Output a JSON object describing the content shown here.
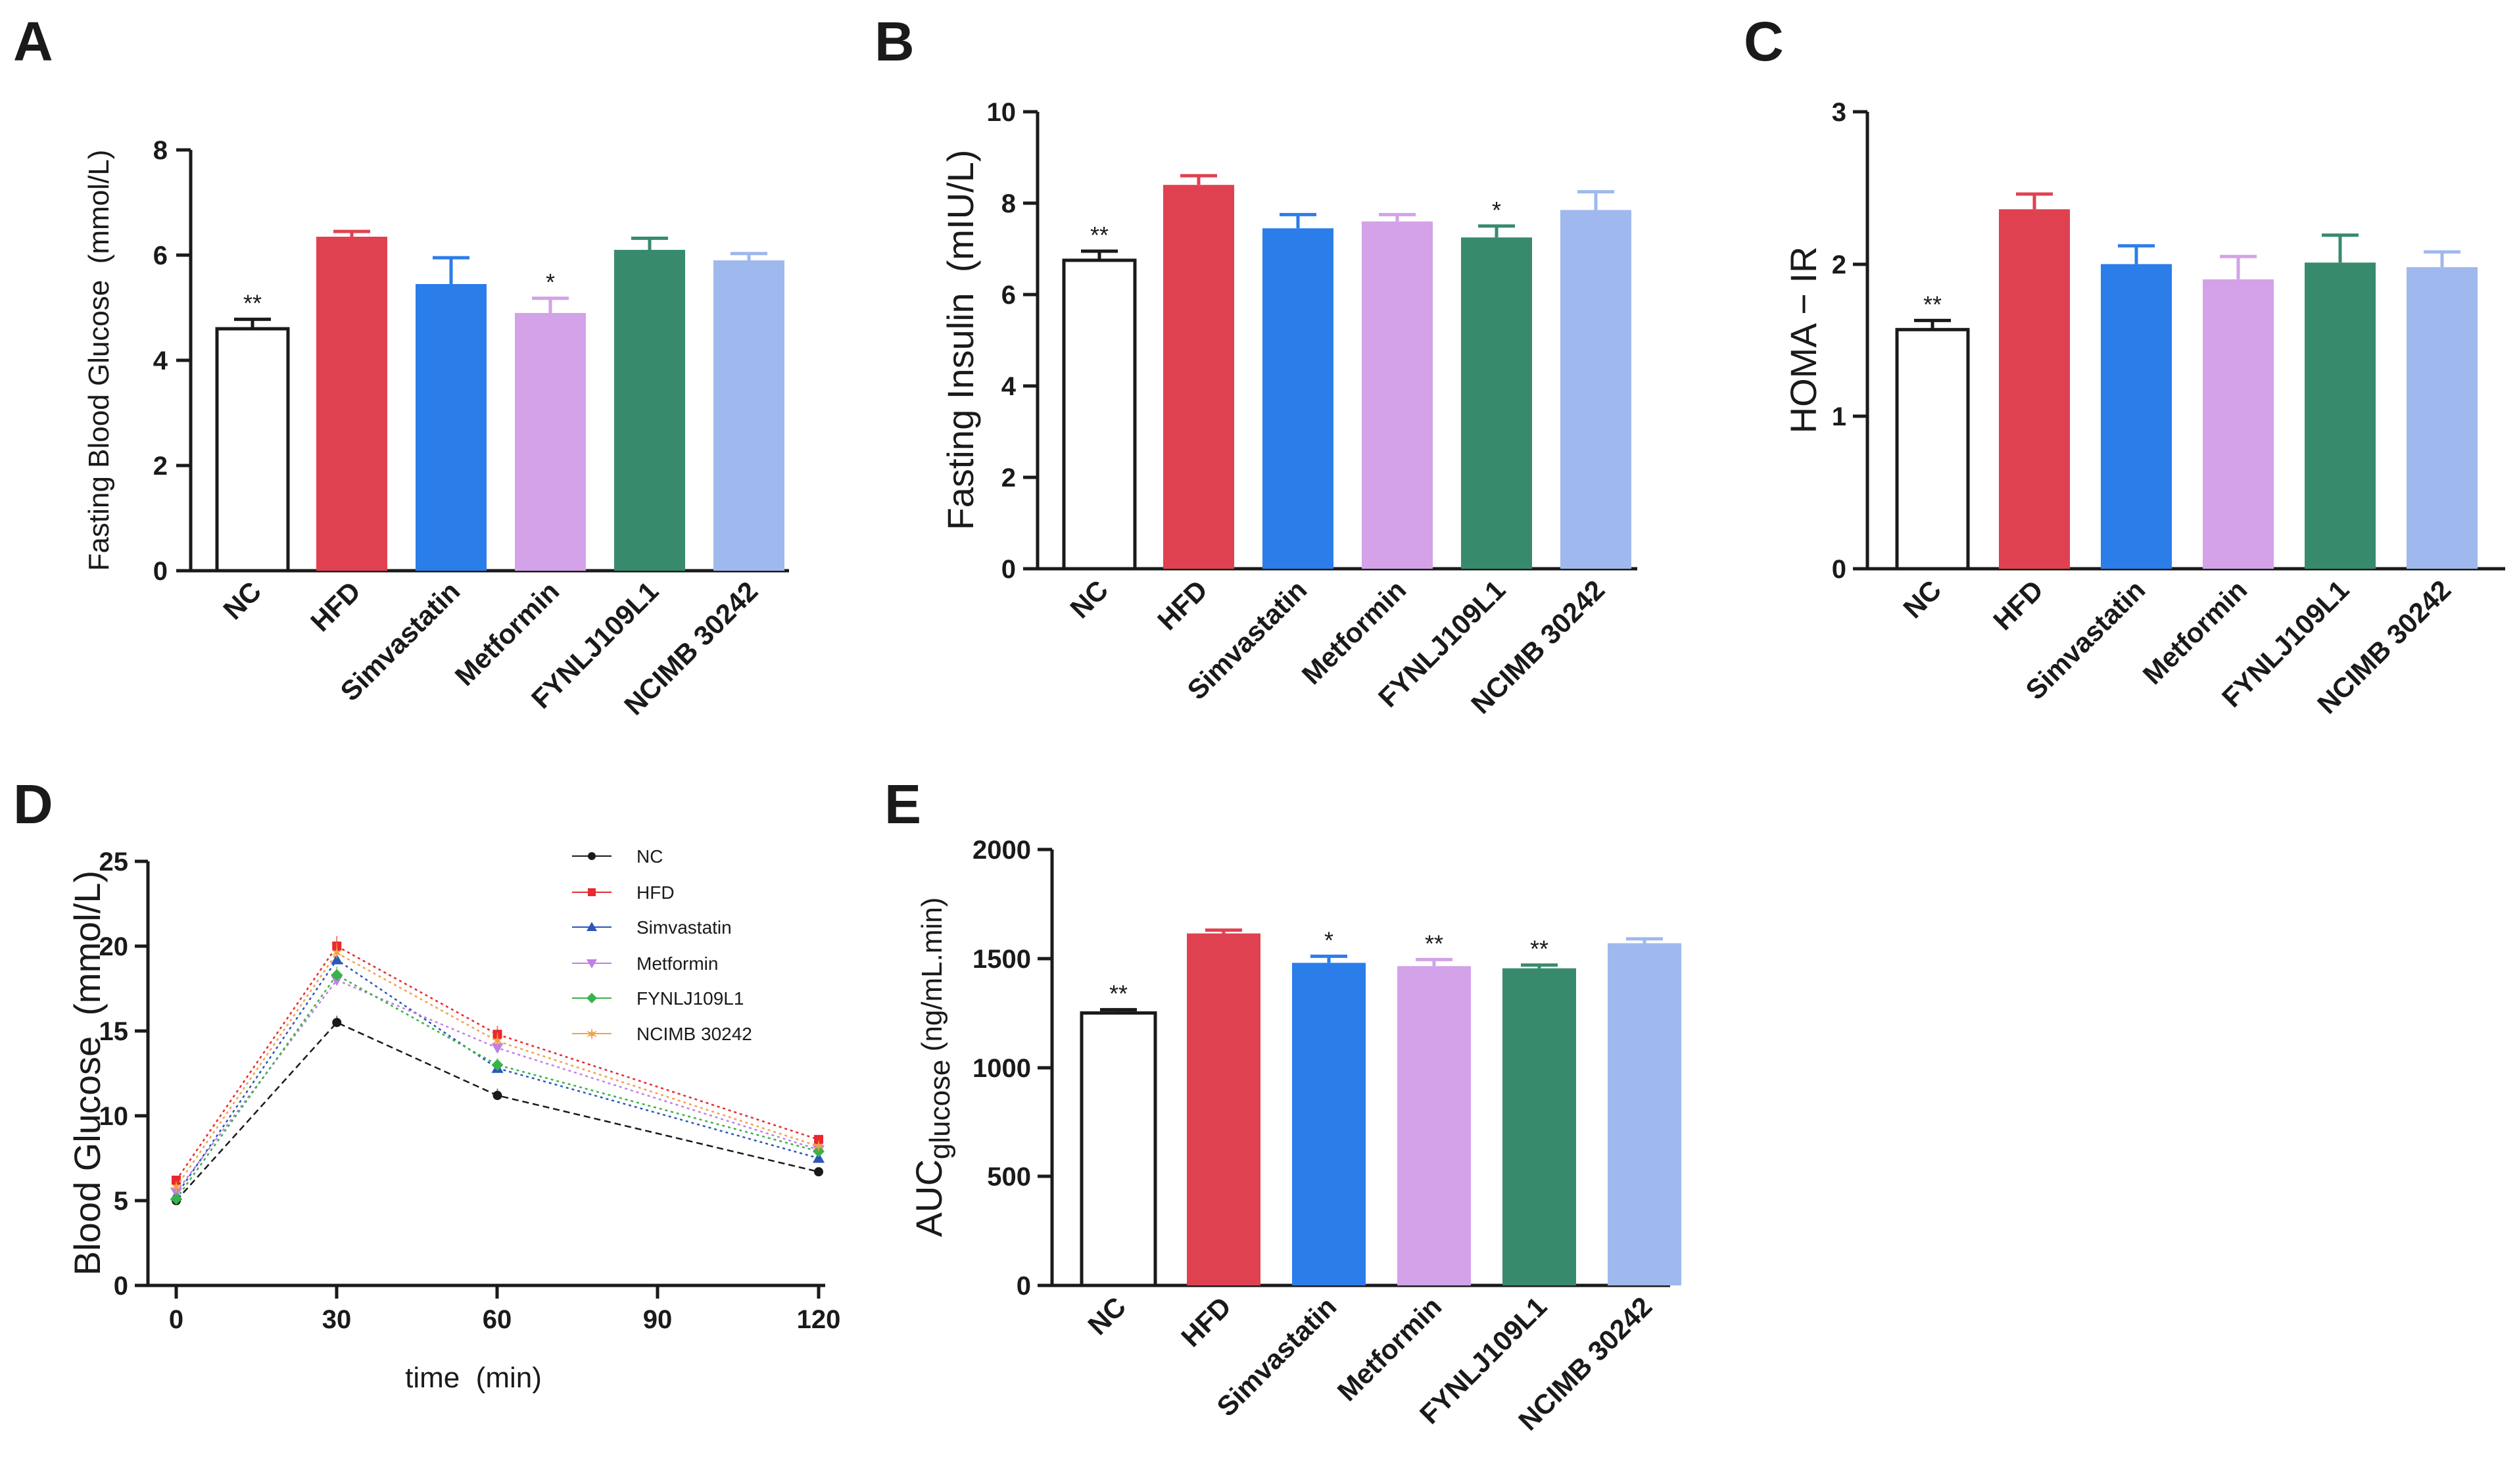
{
  "chart_data": [
    {
      "id": "A",
      "panel": "A",
      "type": "bar",
      "ylabel": "Fasting Blood Glucose  (mmol/L)",
      "ylim": [
        0,
        8
      ],
      "yticks": [
        "0",
        "2",
        "4",
        "6",
        "8"
      ],
      "categories": [
        "NC",
        "HFD",
        "Simvastatin",
        "Metformin",
        "FYNLJ109L1",
        "NCIMB 30242"
      ],
      "values": [
        4.6,
        6.35,
        5.45,
        4.9,
        6.1,
        5.9
      ],
      "errors": [
        0.18,
        0.1,
        0.5,
        0.28,
        0.22,
        0.13
      ],
      "significance": [
        "**",
        "",
        "",
        "*",
        "",
        ""
      ]
    },
    {
      "id": "B",
      "panel": "B",
      "type": "bar",
      "ylabel": "Fasting Insulin  (mIU/L)",
      "ylim": [
        0,
        10
      ],
      "yticks": [
        "0",
        "2",
        "4",
        "6",
        "8",
        "10"
      ],
      "categories": [
        "NC",
        "HFD",
        "Simvastatin",
        "Metformin",
        "FYNLJ109L1",
        "NCIMB 30242"
      ],
      "values": [
        6.75,
        8.4,
        7.45,
        7.6,
        7.25,
        7.85
      ],
      "errors": [
        0.2,
        0.2,
        0.3,
        0.15,
        0.25,
        0.4
      ],
      "significance": [
        "**",
        "",
        "",
        "",
        "*",
        ""
      ]
    },
    {
      "id": "C",
      "panel": "C",
      "type": "bar",
      "ylabel": "HOMA − IR",
      "ylim": [
        0,
        3
      ],
      "yticks": [
        "0",
        "1",
        "2",
        "3"
      ],
      "categories": [
        "NC",
        "HFD",
        "Simvastatin",
        "Metformin",
        "FYNLJ109L1",
        "NCIMB 30242"
      ],
      "values": [
        1.57,
        2.36,
        2.0,
        1.9,
        2.01,
        1.98
      ],
      "errors": [
        0.06,
        0.1,
        0.12,
        0.15,
        0.18,
        0.1
      ],
      "significance": [
        "**",
        "",
        "",
        "",
        "",
        ""
      ]
    },
    {
      "id": "D",
      "panel": "D",
      "type": "line",
      "xlabel": "time  (min)",
      "ylabel": "Blood Glucose  (mmol/L)",
      "x": [
        0,
        30,
        60,
        90,
        120
      ],
      "xticks": [
        "0",
        "30",
        "60",
        "90",
        "120"
      ],
      "xlim": [
        0,
        120
      ],
      "ylim": [
        0,
        25
      ],
      "yticks": [
        "0",
        "5",
        "10",
        "15",
        "20",
        "25"
      ],
      "series": [
        {
          "name": "NC",
          "x": [
            0,
            30,
            60,
            120
          ],
          "values": [
            5.0,
            15.5,
            11.2,
            6.7
          ],
          "errors": [
            0.2,
            0.4,
            0.4,
            0.2
          ],
          "marker": "circle"
        },
        {
          "name": "HFD",
          "x": [
            0,
            30,
            60,
            120
          ],
          "values": [
            6.2,
            20.0,
            14.8,
            8.6
          ],
          "errors": [
            0.2,
            0.6,
            0.5,
            0.2
          ],
          "marker": "square"
        },
        {
          "name": "Simvastatin",
          "x": [
            0,
            30,
            60,
            120
          ],
          "values": [
            5.3,
            19.2,
            12.8,
            7.5
          ],
          "errors": [
            0.2,
            0.5,
            0.4,
            0.2
          ],
          "marker": "triangle-up"
        },
        {
          "name": "Metformin",
          "x": [
            0,
            30,
            60,
            120
          ],
          "values": [
            5.5,
            18.0,
            14.0,
            8.0
          ],
          "errors": [
            0.2,
            0.5,
            0.4,
            0.2
          ],
          "marker": "triangle-down"
        },
        {
          "name": "FYNLJ109L1",
          "x": [
            0,
            30,
            60,
            120
          ],
          "values": [
            5.1,
            18.3,
            13.0,
            7.9
          ],
          "errors": [
            0.2,
            0.5,
            0.4,
            0.2
          ],
          "marker": "diamond"
        },
        {
          "name": "NCIMB 30242",
          "x": [
            0,
            30,
            60,
            120
          ],
          "values": [
            5.8,
            19.6,
            14.4,
            8.2
          ],
          "errors": [
            0.2,
            0.6,
            0.5,
            0.2
          ],
          "marker": "star"
        }
      ]
    },
    {
      "id": "E",
      "panel": "E",
      "type": "bar",
      "ylabel_main": "AUC",
      "ylabel_sub": "glucose",
      "ylabel_unit": " (ng/mL.min)",
      "ylim": [
        0,
        2000
      ],
      "yticks": [
        "0",
        "500",
        "1000",
        "1500",
        "2000"
      ],
      "categories": [
        "NC",
        "HFD",
        "Simvastatin",
        "Metformin",
        "FYNLJ109L1",
        "NCIMB 30242"
      ],
      "values": [
        1250,
        1615,
        1480,
        1465,
        1455,
        1570
      ],
      "errors": [
        15,
        15,
        30,
        30,
        15,
        20
      ],
      "significance": [
        "**",
        "",
        "*",
        "**",
        "**",
        ""
      ]
    }
  ],
  "colors": {
    "axis": "#1a1a1a",
    "bars": [
      "#ffffff",
      "#e04150",
      "#2b7de9",
      "#d3a2e8",
      "#378b6c",
      "#9fb8ee"
    ],
    "bar_errors": [
      "#1a1a1a",
      "#e04150",
      "#2b7de9",
      "#d3a2e8",
      "#378b6c",
      "#9fb8ee"
    ],
    "lines": [
      "#1a1a1a",
      "#e8282e",
      "#2a57b8",
      "#c27ee6",
      "#38b34a",
      "#f2a24a"
    ]
  }
}
